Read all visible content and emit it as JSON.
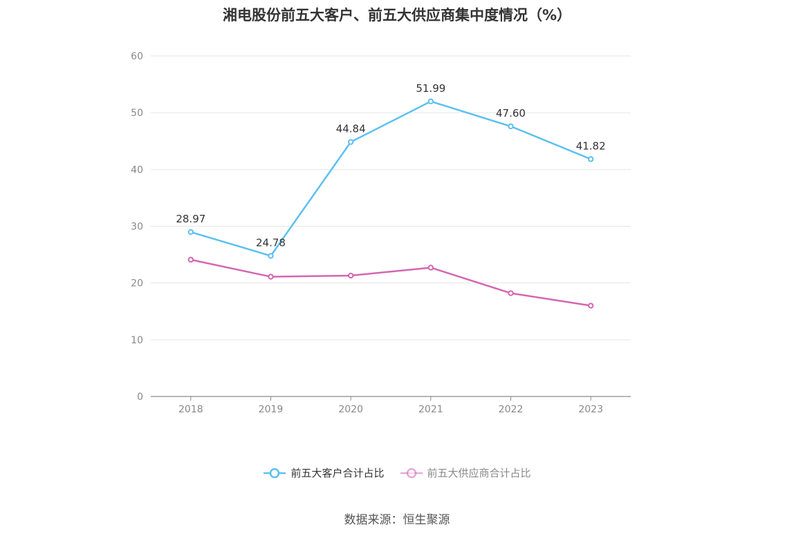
{
  "chart_data": {
    "type": "line",
    "title": "湘电股份前五大客户、前五大供应商集中度情况（%）",
    "categories": [
      "2018",
      "2019",
      "2020",
      "2021",
      "2022",
      "2023"
    ],
    "ylim": [
      0,
      60
    ],
    "yticks": [
      0,
      10,
      20,
      30,
      40,
      50,
      60
    ],
    "grid": true,
    "legend_position": "bottom",
    "series": [
      {
        "name": "前五大客户合计占比",
        "color": "#5bc0f0",
        "values": [
          28.97,
          24.78,
          44.84,
          51.99,
          47.6,
          41.82
        ],
        "labels": [
          "28.97",
          "24.78",
          "44.84",
          "51.99",
          "47.60",
          "41.82"
        ]
      },
      {
        "name": "前五大供应商合计占比",
        "color": "#d466b2",
        "values": [
          24.1,
          21.1,
          21.3,
          22.7,
          18.2,
          16.0
        ],
        "labels": []
      }
    ]
  },
  "source": "数据来源：恒生聚源"
}
